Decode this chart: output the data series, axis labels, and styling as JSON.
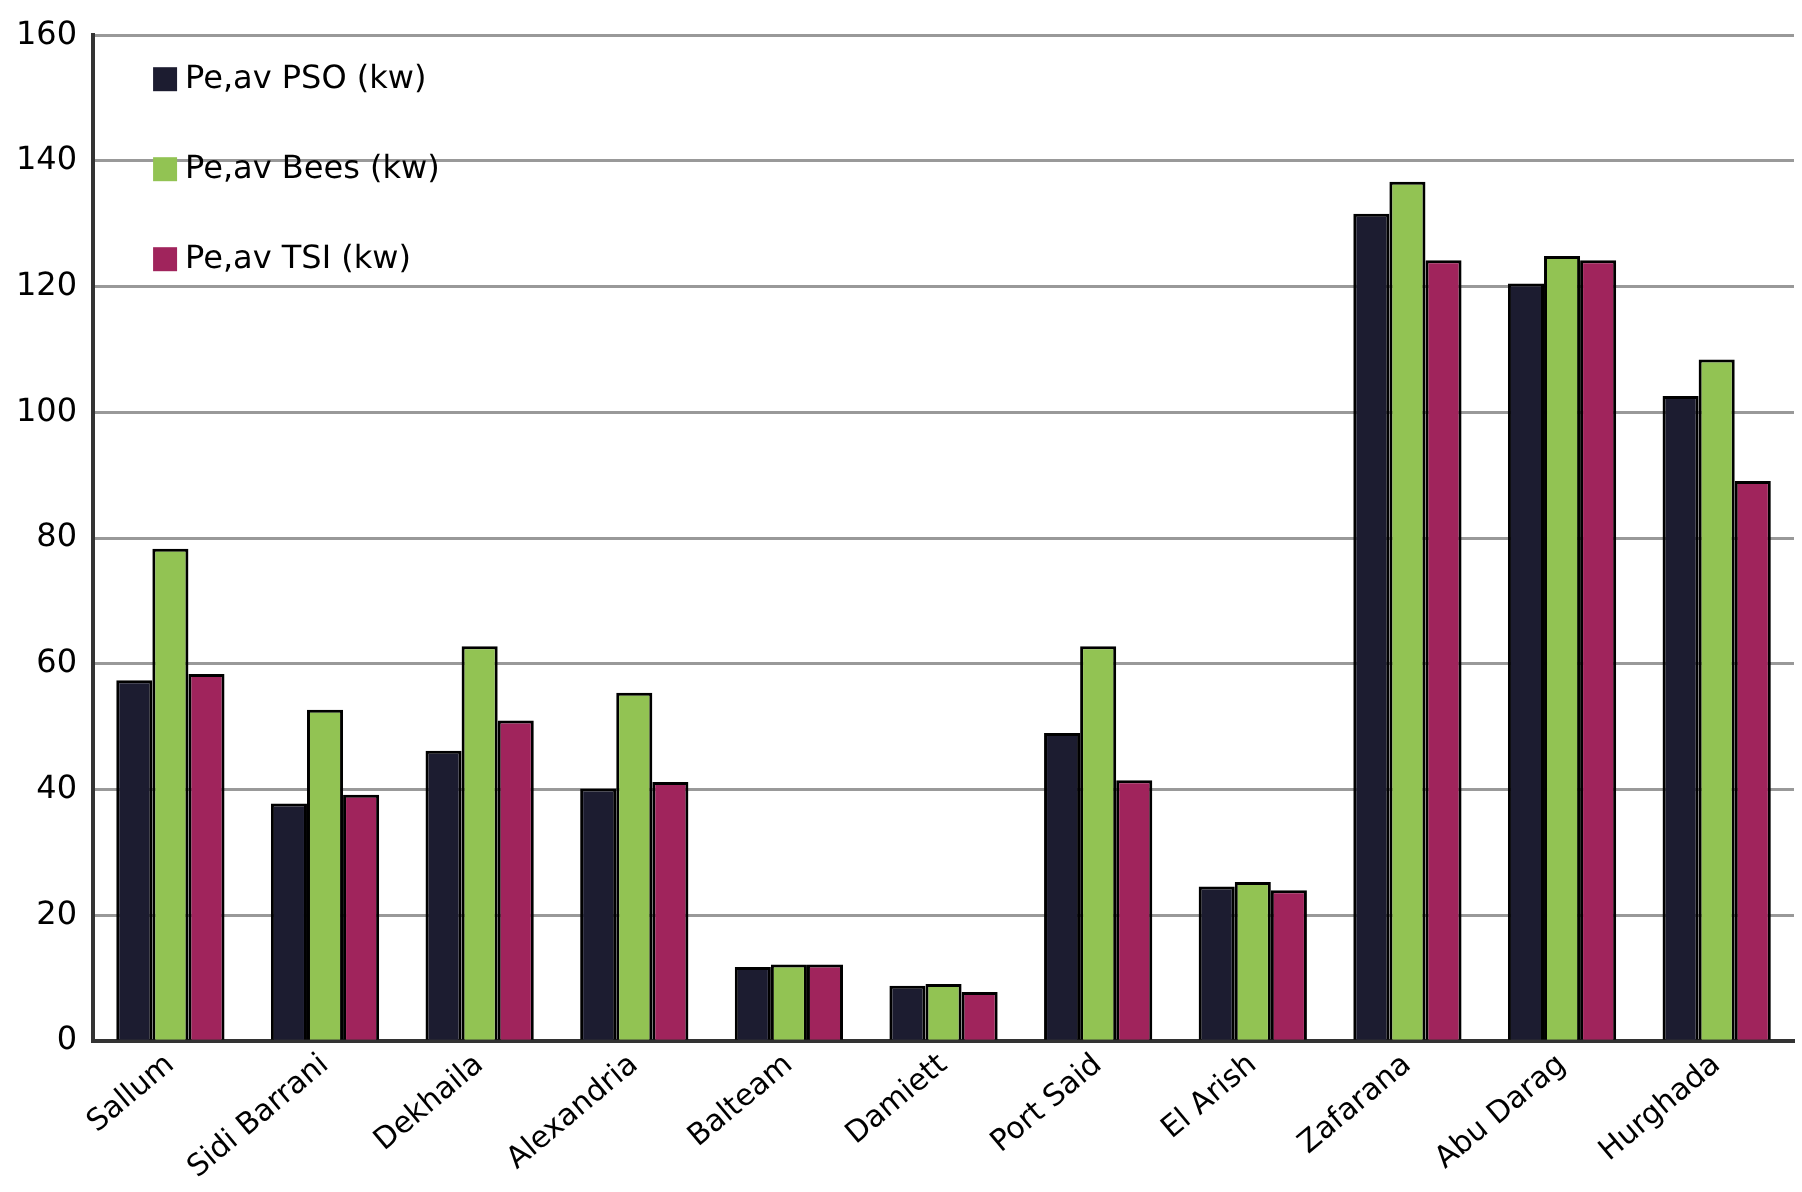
{
  "chart_data": {
    "type": "bar",
    "categories": [
      "Sallum",
      "Sidi Barrani",
      "Dekhaila",
      "Alexandria",
      "Balteam",
      "Damiett",
      "Port Said",
      "El Arish",
      "Zafarana",
      "Abu Darag",
      "Hurghada"
    ],
    "series": [
      {
        "name": "Pe,av PSO (kw)",
        "color": "#1c1c30",
        "values": [
          57.4,
          37.8,
          46.2,
          40.2,
          11.8,
          8.8,
          49,
          24.6,
          131.6,
          120.5,
          102.6
        ]
      },
      {
        "name": "Pe,av Bees (kw)",
        "color": "#92c353",
        "values": [
          78.3,
          52.7,
          62.8,
          55.4,
          12.2,
          9.1,
          62.8,
          25.3,
          136.7,
          124.9,
          108.4
        ]
      },
      {
        "name": "Pe,av TSI (kw)",
        "color": "#a0245c",
        "values": [
          58.4,
          39.2,
          51,
          41.2,
          12.2,
          7.8,
          41.5,
          24,
          124.2,
          124.2,
          89.1
        ]
      }
    ],
    "ylim": [
      0,
      160
    ],
    "yticks": [
      0,
      20,
      40,
      60,
      80,
      100,
      120,
      140,
      160
    ],
    "grid": "y",
    "legend": "top left"
  }
}
